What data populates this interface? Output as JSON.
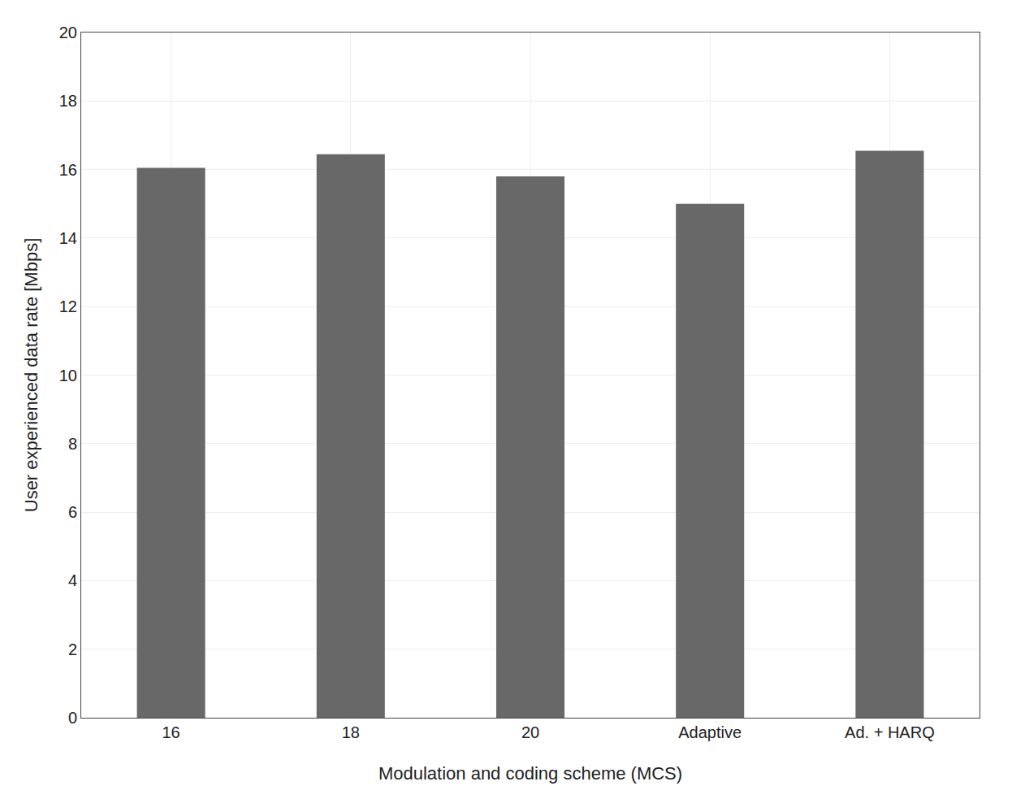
{
  "chart_data": {
    "type": "bar",
    "categories": [
      "16",
      "18",
      "20",
      "Adaptive",
      "Ad. + HARQ"
    ],
    "values": [
      16.05,
      16.45,
      15.8,
      15.0,
      16.55
    ],
    "color": "#686868",
    "xlabel": "Modulation and coding scheme (MCS)",
    "ylabel": "User experienced data rate [Mbps]",
    "ylim": [
      0,
      20
    ],
    "yticks": [
      0,
      2,
      4,
      6,
      8,
      10,
      12,
      14,
      16,
      18,
      20
    ],
    "grid": true
  }
}
